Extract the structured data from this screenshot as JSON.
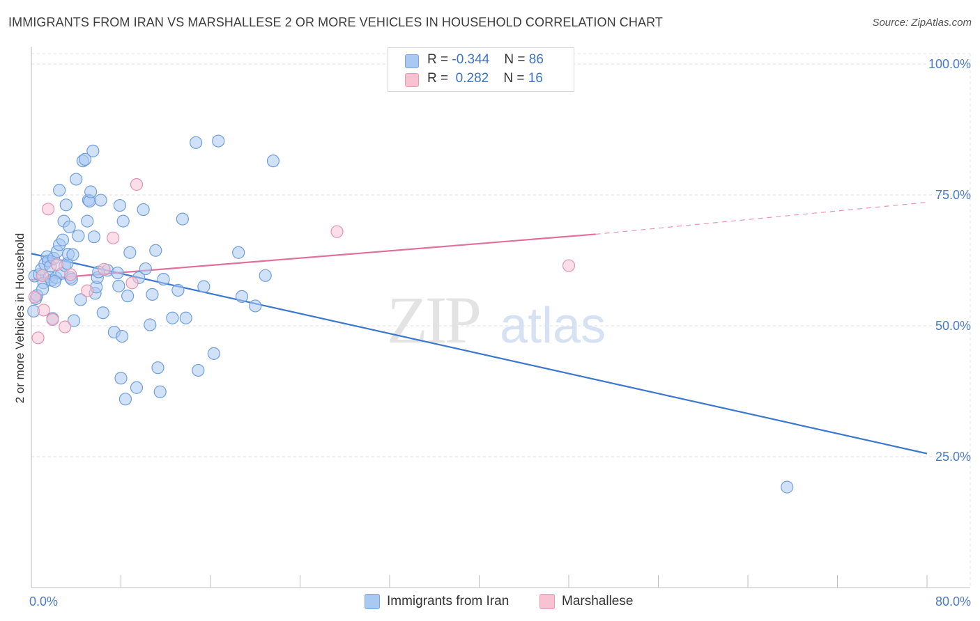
{
  "title": "IMMIGRANTS FROM IRAN VS MARSHALLESE 2 OR MORE VEHICLES IN HOUSEHOLD CORRELATION CHART",
  "source": "Source: ZipAtlas.com",
  "legend": {
    "rows": [
      {
        "r_label": "R = ",
        "r_value": "-0.344",
        "n_label": "N = ",
        "n_value": "86",
        "color": "#a9c8f2",
        "border": "#7aa6e0"
      },
      {
        "r_label": "R = ",
        "r_value": " 0.282",
        "n_label": "N = ",
        "n_value": "16",
        "color": "#f8c2d3",
        "border": "#e89ab2"
      }
    ]
  },
  "bottom_legend": [
    {
      "label": "Immigrants from Iran",
      "color": "#a9c8f2",
      "border": "#7aa6e0"
    },
    {
      "label": "Marshallese",
      "color": "#f8c2d3",
      "border": "#e89ab2"
    }
  ],
  "chart_data": {
    "type": "scatter",
    "title": "IMMIGRANTS FROM IRAN VS MARSHALLESE 2 OR MORE VEHICLES IN HOUSEHOLD CORRELATION CHART",
    "xlabel": "",
    "ylabel": "2 or more Vehicles in Household",
    "xlim": [
      0,
      80
    ],
    "ylim": [
      0,
      102
    ],
    "x_tick_labels": [
      "0.0%",
      "80.0%"
    ],
    "y_ticks": [
      25,
      50,
      75,
      100
    ],
    "y_tick_labels": [
      "25.0%",
      "50.0%",
      "75.0%",
      "100.0%"
    ],
    "grid": true,
    "watermark": {
      "part1": "ZIP",
      "part2": "atlas"
    },
    "series": [
      {
        "name": "Immigrants from Iran",
        "color": "#a9c8f2",
        "stroke": "#6f9fdc",
        "trend": {
          "x": [
            0,
            80
          ],
          "y": [
            63.8,
            25.6
          ],
          "color": "#3a78d0"
        },
        "points": [
          [
            0.3,
            59.5
          ],
          [
            0.4,
            55.2
          ],
          [
            0.5,
            55.8
          ],
          [
            0.7,
            59.8
          ],
          [
            0.9,
            60.8
          ],
          [
            1.1,
            58.2
          ],
          [
            1.2,
            61.8
          ],
          [
            1.4,
            63.2
          ],
          [
            1.5,
            62.4
          ],
          [
            1.6,
            59.3
          ],
          [
            1.7,
            61.4
          ],
          [
            1.8,
            58.7
          ],
          [
            1.9,
            51.4
          ],
          [
            2.0,
            62.9
          ],
          [
            2.2,
            59.2
          ],
          [
            2.3,
            64.2
          ],
          [
            2.5,
            65.5
          ],
          [
            2.5,
            75.9
          ],
          [
            2.7,
            60.0
          ],
          [
            2.8,
            66.4
          ],
          [
            2.9,
            70.0
          ],
          [
            3.0,
            61.5
          ],
          [
            3.1,
            73.1
          ],
          [
            3.2,
            61.9
          ],
          [
            3.3,
            63.7
          ],
          [
            3.4,
            68.9
          ],
          [
            3.5,
            59.2
          ],
          [
            3.7,
            63.6
          ],
          [
            3.8,
            51.0
          ],
          [
            4.0,
            78.0
          ],
          [
            4.2,
            67.2
          ],
          [
            4.4,
            55.0
          ],
          [
            4.6,
            81.5
          ],
          [
            4.8,
            81.8
          ],
          [
            5.0,
            70.0
          ],
          [
            5.1,
            74.0
          ],
          [
            5.2,
            73.8
          ],
          [
            5.3,
            75.6
          ],
          [
            5.5,
            83.4
          ],
          [
            5.6,
            67.0
          ],
          [
            5.7,
            56.2
          ],
          [
            5.8,
            57.4
          ],
          [
            5.9,
            59.2
          ],
          [
            6.2,
            74.0
          ],
          [
            6.4,
            52.5
          ],
          [
            6.8,
            60.6
          ],
          [
            7.4,
            48.8
          ],
          [
            7.7,
            60.1
          ],
          [
            7.8,
            57.6
          ],
          [
            7.9,
            73.0
          ],
          [
            8.0,
            40.0
          ],
          [
            8.1,
            48.0
          ],
          [
            8.2,
            70.0
          ],
          [
            8.4,
            36.0
          ],
          [
            8.6,
            55.7
          ],
          [
            8.8,
            64.0
          ],
          [
            9.4,
            38.2
          ],
          [
            9.6,
            59.2
          ],
          [
            10.0,
            72.2
          ],
          [
            10.2,
            60.9
          ],
          [
            10.6,
            50.2
          ],
          [
            10.8,
            56.0
          ],
          [
            11.1,
            64.4
          ],
          [
            11.3,
            42.0
          ],
          [
            11.5,
            37.4
          ],
          [
            11.8,
            58.9
          ],
          [
            12.6,
            51.5
          ],
          [
            13.1,
            56.8
          ],
          [
            13.5,
            70.4
          ],
          [
            13.8,
            51.5
          ],
          [
            14.7,
            85.0
          ],
          [
            14.9,
            41.5
          ],
          [
            15.4,
            57.5
          ],
          [
            16.3,
            44.7
          ],
          [
            16.7,
            85.3
          ],
          [
            18.5,
            64.0
          ],
          [
            18.8,
            55.6
          ],
          [
            20.0,
            53.8
          ],
          [
            20.9,
            59.6
          ],
          [
            21.6,
            81.5
          ],
          [
            67.5,
            19.2
          ],
          [
            0.2,
            52.8
          ],
          [
            1.0,
            57.0
          ],
          [
            2.1,
            58.5
          ],
          [
            3.6,
            58.9
          ],
          [
            6.0,
            60.3
          ]
        ]
      },
      {
        "name": "Marshallese",
        "color": "#f8c2d3",
        "stroke": "#e395ae",
        "trend": {
          "x": [
            0,
            50.4
          ],
          "y": [
            58.8,
            67.5
          ],
          "dash_to": [
            80,
            73.6
          ],
          "color": "#e0709a"
        },
        "points": [
          [
            0.3,
            55.5
          ],
          [
            0.6,
            47.7
          ],
          [
            1.0,
            59.6
          ],
          [
            1.1,
            53.0
          ],
          [
            1.5,
            72.3
          ],
          [
            1.9,
            51.2
          ],
          [
            2.3,
            61.7
          ],
          [
            3.0,
            49.8
          ],
          [
            3.5,
            59.8
          ],
          [
            5.0,
            56.7
          ],
          [
            6.5,
            60.8
          ],
          [
            7.3,
            66.8
          ],
          [
            9.0,
            58.2
          ],
          [
            9.4,
            77.0
          ],
          [
            27.3,
            68.0
          ],
          [
            48.0,
            61.5
          ]
        ]
      }
    ]
  }
}
